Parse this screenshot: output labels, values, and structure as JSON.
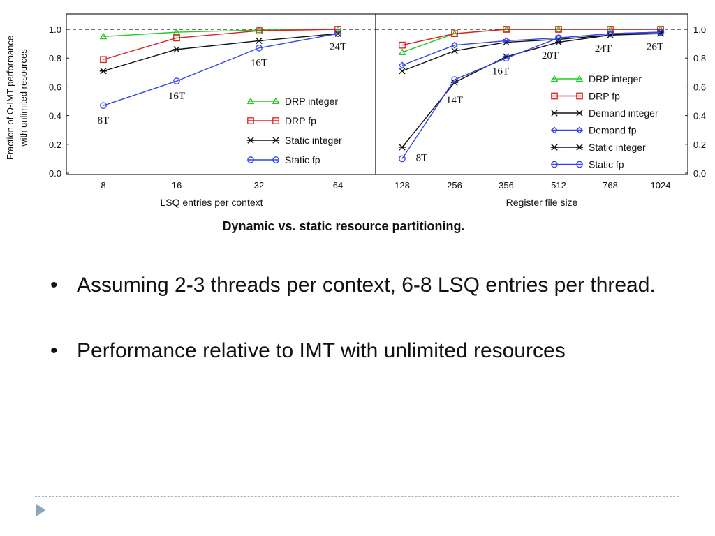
{
  "chart_data": [
    {
      "type": "line",
      "xlabel": "LSQ entries per context",
      "ylabel": "Fraction of O-IMT performance with unlimited resources",
      "categories": [
        "8",
        "16",
        "32",
        "64"
      ],
      "ylim": [
        0,
        1.0
      ],
      "yticks": [
        "0.0",
        "0.2",
        "0.4",
        "0.6",
        "0.8",
        "1.0"
      ],
      "reference_line": 1.0,
      "legend_position": "bottom-right",
      "series": [
        {
          "name": "DRP integer",
          "color": "#22cc22",
          "marker": "triangle",
          "values": [
            0.95,
            0.98,
            0.995,
            1.0
          ]
        },
        {
          "name": "DRP fp",
          "color": "#e02020",
          "marker": "square",
          "values": [
            0.79,
            0.94,
            0.99,
            1.0
          ]
        },
        {
          "name": "Static integer",
          "color": "#111111",
          "marker": "star",
          "values": [
            0.71,
            0.86,
            0.92,
            0.97
          ]
        },
        {
          "name": "Static fp",
          "color": "#3344ee",
          "marker": "circle",
          "values": [
            0.47,
            0.64,
            0.87,
            0.97
          ]
        }
      ],
      "annotations": [
        {
          "text": "8T",
          "category": "8",
          "y": 0.37
        },
        {
          "text": "16T",
          "category": "16",
          "y": 0.54
        },
        {
          "text": "16T",
          "category": "32",
          "y": 0.77
        },
        {
          "text": "24T",
          "category": "64",
          "y": 0.88
        }
      ]
    },
    {
      "type": "line",
      "xlabel": "Register file size",
      "categories": [
        "128",
        "256",
        "356",
        "512",
        "768",
        "1024"
      ],
      "ylim": [
        0,
        1.0
      ],
      "yticks": [
        "0.0",
        "0.2",
        "0.4",
        "0.6",
        "0.8",
        "1.0"
      ],
      "reference_line": 1.0,
      "legend_position": "right",
      "series": [
        {
          "name": "DRP integer",
          "color": "#22cc22",
          "marker": "triangle",
          "values": [
            0.84,
            0.97,
            1.0,
            1.0,
            1.0,
            1.0
          ]
        },
        {
          "name": "DRP fp",
          "color": "#e02020",
          "marker": "square",
          "values": [
            0.89,
            0.97,
            1.0,
            1.0,
            1.0,
            1.0
          ]
        },
        {
          "name": "Demand integer",
          "color": "#111111",
          "marker": "x",
          "values": [
            0.71,
            0.85,
            0.91,
            0.93,
            0.96,
            0.97
          ]
        },
        {
          "name": "Demand fp",
          "color": "#3344ee",
          "marker": "diamond",
          "values": [
            0.75,
            0.89,
            0.92,
            0.94,
            0.97,
            0.98
          ]
        },
        {
          "name": "Static integer",
          "color": "#111111",
          "marker": "star",
          "values": [
            0.18,
            0.63,
            0.81,
            0.91,
            0.96,
            0.98
          ]
        },
        {
          "name": "Static fp",
          "color": "#3344ee",
          "marker": "circle",
          "values": [
            0.1,
            0.65,
            0.8,
            0.94,
            0.97,
            0.98
          ]
        }
      ],
      "annotations": [
        {
          "text": "8T",
          "category": "128",
          "y": 0.11,
          "dx": 28
        },
        {
          "text": "14T",
          "category": "256",
          "y": 0.51
        },
        {
          "text": "16T",
          "category": "356",
          "y": 0.71,
          "dx": -8
        },
        {
          "text": "20T",
          "category": "512",
          "y": 0.82,
          "dx": -12
        },
        {
          "text": "24T",
          "category": "768",
          "y": 0.87,
          "dx": -10
        },
        {
          "text": "26T",
          "category": "1024",
          "y": 0.88,
          "dx": -8
        }
      ]
    }
  ],
  "caption": "Dynamic vs. static resource partitioning.",
  "bullets": [
    "Assuming 2-3 threads per context, 6-8 LSQ entries per thread.",
    "Performance relative to IMT with unlimited resources"
  ],
  "bullet_glyph": "•",
  "footer_icon": "triangle-right-icon"
}
